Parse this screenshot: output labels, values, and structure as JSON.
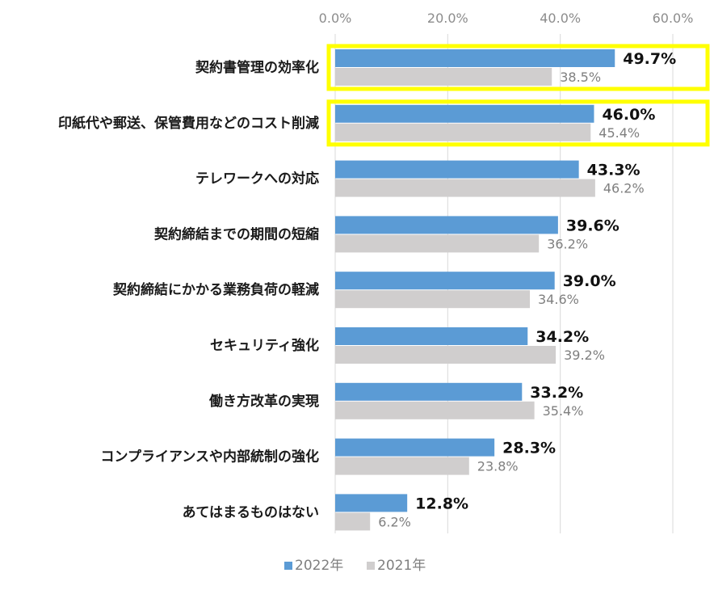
{
  "chart_data": {
    "type": "bar",
    "orientation": "horizontal",
    "title": "",
    "xlabel": "",
    "ylabel": "",
    "xlim": [
      0,
      60
    ],
    "x_ticks": [
      0,
      20,
      40,
      60
    ],
    "x_tick_labels": [
      "0.0%",
      "20.0%",
      "40.0%",
      "60.0%"
    ],
    "grid": true,
    "legend_position": "bottom",
    "categories": [
      "契約書管理の効率化",
      "印紙代や郵送、保管費用などのコスト削減",
      "テレワークへの対応",
      "契約締結までの期間の短縮",
      "契約締結にかかる業務負荷の軽減",
      "セキュリティ強化",
      "働き方改革の実現",
      "コンプライアンスや内部統制の強化",
      "あてはまるものはない"
    ],
    "series": [
      {
        "name": "2022年",
        "color": "#5b9bd5",
        "values": [
          49.7,
          46.0,
          43.3,
          39.6,
          39.0,
          34.2,
          33.2,
          28.3,
          12.8
        ],
        "labels": [
          "49.7%",
          "46.0%",
          "43.3%",
          "39.6%",
          "39.0%",
          "34.2%",
          "33.2%",
          "28.3%",
          "12.8%"
        ]
      },
      {
        "name": "2021年",
        "color": "#d0cece",
        "values": [
          38.5,
          45.4,
          46.2,
          36.2,
          34.6,
          39.2,
          35.4,
          23.8,
          6.2
        ],
        "labels": [
          "38.5%",
          "45.4%",
          "46.2%",
          "36.2%",
          "34.6%",
          "39.2%",
          "35.4%",
          "23.8%",
          "6.2%"
        ]
      }
    ],
    "highlighted_categories": [
      0,
      1
    ],
    "highlight_color": "#ffff00"
  }
}
